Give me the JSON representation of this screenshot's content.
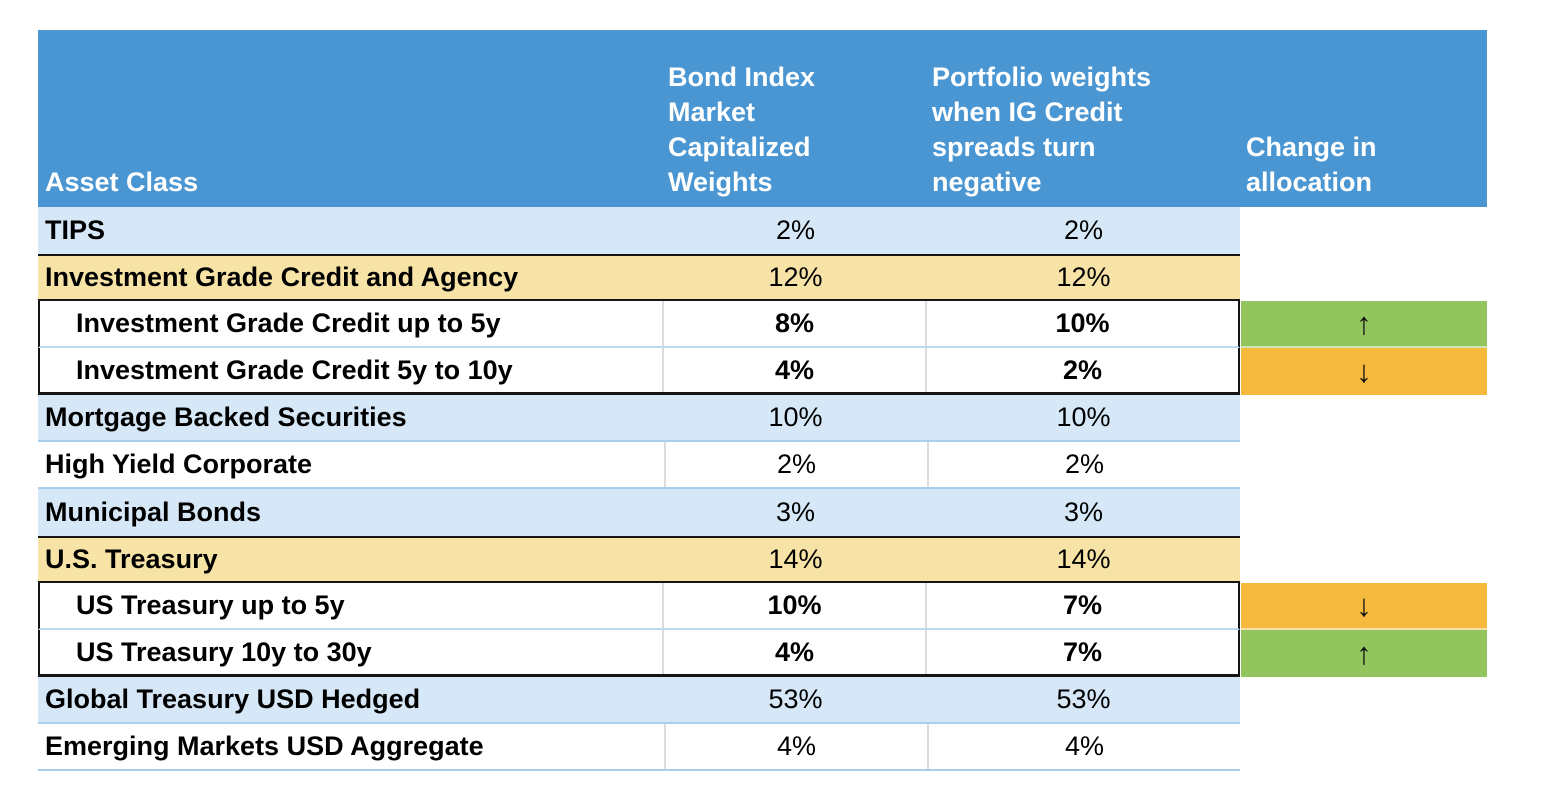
{
  "palette": {
    "header_blue": "#4a96d2",
    "row_light_blue": "#d6e8f7",
    "row_tan": "#f8e3a6",
    "change_up_green": "#93c55e",
    "change_down_orange": "#f5b93e",
    "grid_black": "#141414"
  },
  "chart_data": {
    "type": "table",
    "title": "",
    "columns": [
      "Asset Class",
      "Bond Index Market Capitalized Weights",
      "Portfolio weights when IG Credit spreads turn negative",
      "Change in allocation"
    ],
    "rows": [
      {
        "label": "TIPS",
        "index_weight": "2%",
        "portfolio_weight": "2%",
        "change_symbol": "",
        "change_direction": ""
      },
      {
        "label": "Investment Grade Credit and Agency",
        "index_weight": "12%",
        "portfolio_weight": "12%",
        "change_symbol": "",
        "change_direction": ""
      },
      {
        "label": "Investment Grade Credit up to 5y",
        "index_weight": "8%",
        "portfolio_weight": "10%",
        "change_symbol": "↑",
        "change_direction": "up"
      },
      {
        "label": "Investment Grade Credit 5y to 10y",
        "index_weight": "4%",
        "portfolio_weight": "2%",
        "change_symbol": "↓",
        "change_direction": "down"
      },
      {
        "label": "Mortgage Backed Securities",
        "index_weight": "10%",
        "portfolio_weight": "10%",
        "change_symbol": "",
        "change_direction": ""
      },
      {
        "label": "High Yield Corporate",
        "index_weight": "2%",
        "portfolio_weight": "2%",
        "change_symbol": "",
        "change_direction": ""
      },
      {
        "label": "Municipal Bonds",
        "index_weight": "3%",
        "portfolio_weight": "3%",
        "change_symbol": "",
        "change_direction": ""
      },
      {
        "label": "U.S. Treasury",
        "index_weight": "14%",
        "portfolio_weight": "14%",
        "change_symbol": "",
        "change_direction": ""
      },
      {
        "label": "US Treasury up to 5y",
        "index_weight": "10%",
        "portfolio_weight": "7%",
        "change_symbol": "↓",
        "change_direction": "down"
      },
      {
        "label": "US Treasury 10y to 30y",
        "index_weight": "4%",
        "portfolio_weight": "7%",
        "change_symbol": "↑",
        "change_direction": "up"
      },
      {
        "label": "Global Treasury USD Hedged",
        "index_weight": "53%",
        "portfolio_weight": "53%",
        "change_symbol": "",
        "change_direction": ""
      },
      {
        "label": "Emerging Markets USD Aggregate",
        "index_weight": "4%",
        "portfolio_weight": "4%",
        "change_symbol": "",
        "change_direction": ""
      }
    ]
  }
}
